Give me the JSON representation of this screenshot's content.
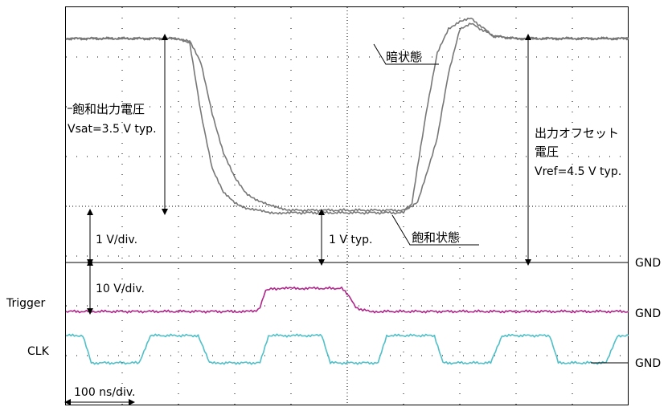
{
  "labels": {
    "saturation_output_voltage": "飽和出力電圧",
    "vsat": "Vsat=3.5 V typ.",
    "dark_state": "暗状態",
    "saturation_state": "飽和状態",
    "offset_line1": "出力オフセット",
    "offset_line2": "電圧",
    "vref": "Vref=4.5 V typ.",
    "v_div_1": "1 V/div.",
    "one_v_typ": "1 V typ.",
    "v_div_10": "10 V/div.",
    "time_div": "100 ns/div.",
    "trigger": "Trigger",
    "clk": "CLK",
    "gnd": "GND"
  },
  "colors": {
    "grid": "#000000",
    "video": "#777777",
    "trigger": "#b0258a",
    "clk": "#4fc0c8"
  },
  "chart_data": {
    "type": "line",
    "title": "",
    "xlabel": "100 ns/div.",
    "x_unit": "ns",
    "xlim": [
      0,
      1000
    ],
    "grid": true,
    "series": [
      {
        "name": "暗状態",
        "unit": "V",
        "x": [
          0,
          100,
          200,
          220,
          240,
          260,
          280,
          300,
          320,
          340,
          360,
          380,
          400,
          500,
          600,
          625,
          660,
          680,
          700,
          720,
          760,
          800,
          1000
        ],
        "y": [
          4.5,
          4.5,
          4.5,
          4.45,
          4.0,
          3.0,
          2.2,
          1.7,
          1.4,
          1.25,
          1.15,
          1.1,
          1.05,
          1.05,
          1.05,
          1.2,
          2.5,
          3.8,
          4.7,
          4.8,
          4.55,
          4.5,
          4.5
        ]
      },
      {
        "name": "飽和状態",
        "unit": "V",
        "x": [
          0,
          100,
          200,
          220,
          240,
          260,
          280,
          300,
          320,
          340,
          360,
          380,
          400,
          500,
          600,
          615,
          640,
          660,
          680,
          700,
          720,
          760,
          800,
          1000
        ],
        "y": [
          4.5,
          4.5,
          4.5,
          4.4,
          3.0,
          1.9,
          1.4,
          1.2,
          1.1,
          1.05,
          1.0,
          1.0,
          1.0,
          1.0,
          1.0,
          1.2,
          3.0,
          4.2,
          4.7,
          4.85,
          4.9,
          4.55,
          4.5,
          4.5
        ]
      },
      {
        "name": "Trigger",
        "unit": "V",
        "x": [
          0,
          100,
          200,
          300,
          335,
          345,
          355,
          380,
          400,
          450,
          490,
          505,
          515,
          540,
          560,
          600,
          700,
          800,
          1000
        ],
        "y": [
          0,
          0,
          0,
          0,
          0,
          0.5,
          3.0,
          3.2,
          3.2,
          3.2,
          3.2,
          2.0,
          0.5,
          0,
          0,
          0,
          0,
          0,
          0
        ]
      },
      {
        "name": "CLK",
        "unit": "V",
        "x": [
          0,
          30,
          45,
          60,
          130,
          150,
          165,
          235,
          255,
          275,
          345,
          360,
          375,
          455,
          470,
          485,
          555,
          570,
          585,
          655,
          670,
          685,
          755,
          775,
          790,
          860,
          875,
          890,
          960,
          980,
          1000
        ],
        "y": [
          0,
          0,
          -1.5,
          -1.5,
          -1.5,
          0,
          0,
          0,
          -1.5,
          -1.5,
          -1.5,
          0,
          0,
          0,
          -1.5,
          -1.5,
          -1.5,
          0,
          0,
          0,
          -1.5,
          -1.5,
          -1.5,
          0,
          0,
          0,
          -1.5,
          -1.5,
          -1.5,
          0,
          0
        ]
      }
    ]
  }
}
